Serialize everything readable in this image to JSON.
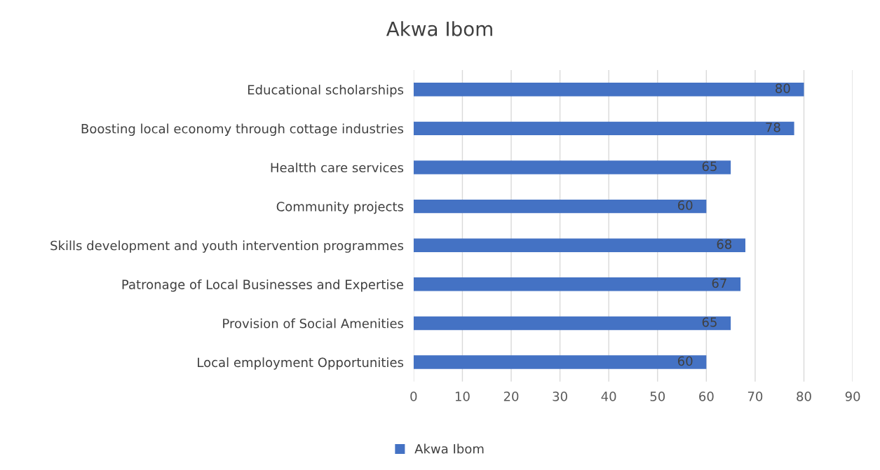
{
  "chart_data": {
    "type": "bar",
    "title": "Akwa Ibom",
    "orientation": "horizontal",
    "categories": [
      "Educational scholarships",
      "Boosting local economy through cottage industries",
      "Healtth care services",
      "Community projects",
      "Skills development and youth intervention programmes",
      "Patronage of Local Businesses and Expertise",
      "Provision of Social Amenities",
      "Local employment Opportunities"
    ],
    "series": [
      {
        "name": "Akwa Ibom",
        "color": "#4472c4",
        "values": [
          80,
          78,
          65,
          60,
          68,
          67,
          65,
          60
        ]
      }
    ],
    "xlim": [
      0,
      90
    ],
    "xticks": [
      0,
      10,
      20,
      30,
      40,
      50,
      60,
      70,
      80,
      90
    ],
    "grid": "x",
    "legend": "bottom",
    "data_labels": true
  }
}
